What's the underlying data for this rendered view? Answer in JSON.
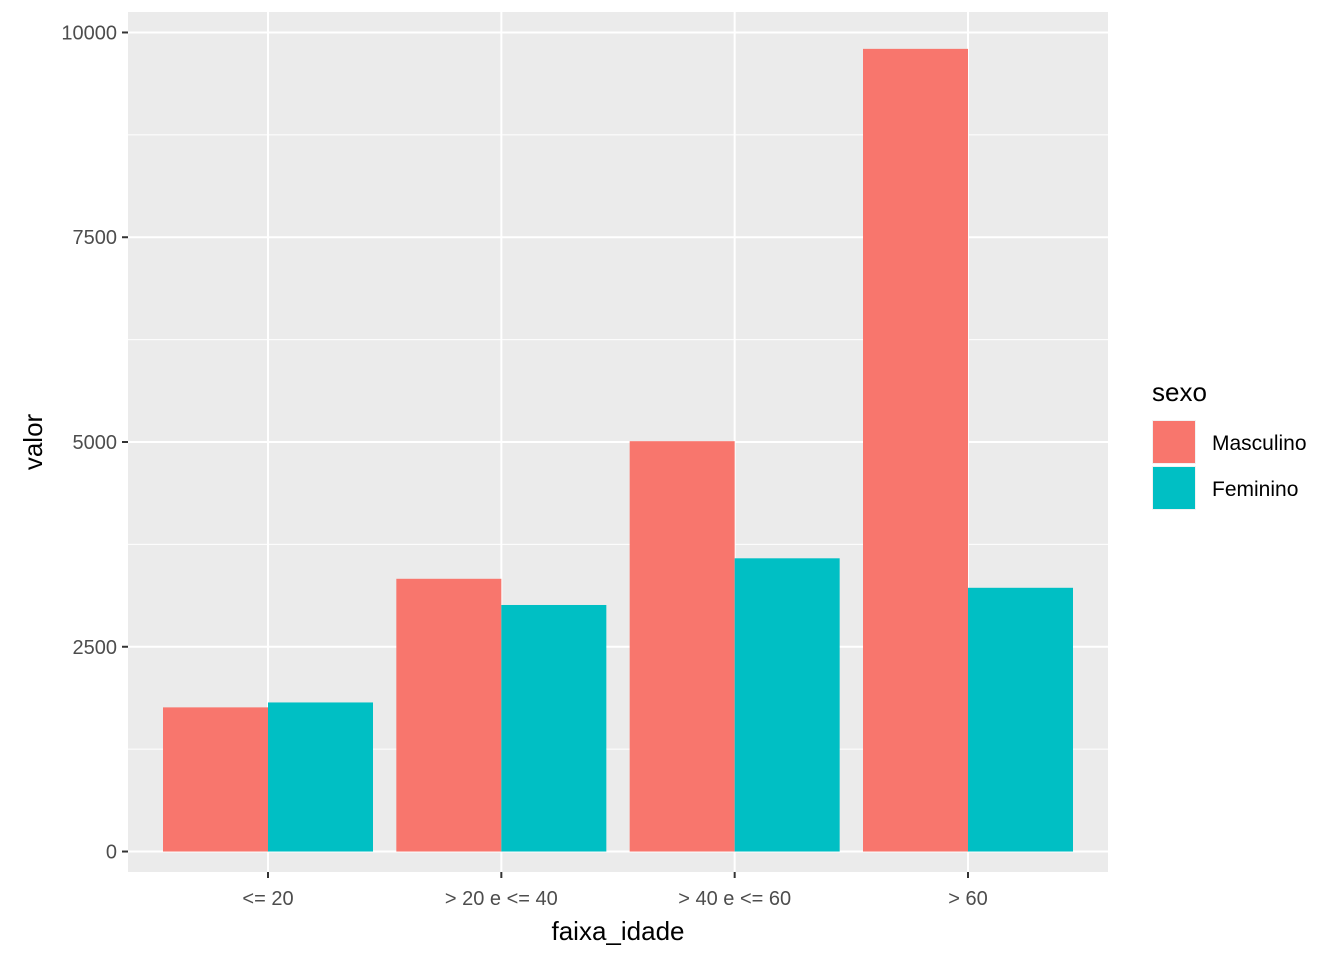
{
  "chart_data": {
    "type": "bar",
    "title": "",
    "xlabel": "faixa_idade",
    "ylabel": "valor",
    "categories": [
      "<= 20",
      "> 20 e <= 40",
      "> 40 e <= 60",
      "> 60"
    ],
    "series": [
      {
        "name": "Masculino",
        "color": "#F8766D",
        "values": [
          1760,
          3330,
          5010,
          9800
        ]
      },
      {
        "name": "Feminino",
        "color": "#00BFC4",
        "values": [
          1820,
          3010,
          3580,
          3220
        ]
      }
    ],
    "ylim": [
      -250,
      10250
    ],
    "yticks": [
      0,
      2500,
      5000,
      7500,
      10000
    ],
    "ytick_labels": [
      "0",
      "2500",
      "5000",
      "7500",
      "10000"
    ],
    "grid": true,
    "legend": {
      "title": "sexo",
      "position": "right"
    },
    "panel_background": "#EBEBEB",
    "grid_color": "#FFFFFF",
    "tick_color": "#333333"
  }
}
